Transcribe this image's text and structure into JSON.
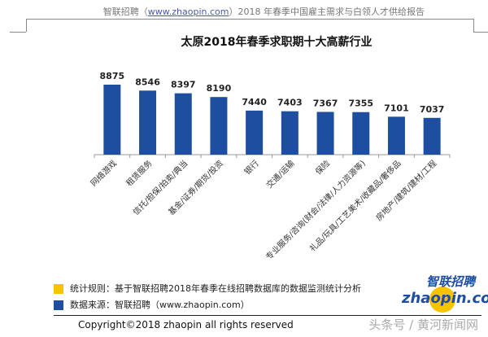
{
  "header": {
    "prefix": "智联招聘（",
    "link": "www.zhaopin.com",
    "suffix": "）2018 年春季中国雇主需求与白领人才供给报告"
  },
  "chart_data": {
    "type": "bar",
    "title": "太原2018年春季求职期十大高薪行业",
    "categories": [
      "网络游戏",
      "租赁服务",
      "信托/担保/拍卖/典当",
      "基金/证券/期货/投资",
      "银行",
      "交通/运输",
      "保险",
      "专业服务/咨询(财会/法律/人力资源等)",
      "礼品/玩具/工艺美术/收藏品/奢侈品",
      "房地产/建筑/建材/工程"
    ],
    "values": [
      8875,
      8546,
      8397,
      8190,
      7440,
      7403,
      7367,
      7355,
      7101,
      7037
    ],
    "ylim": [
      5000,
      9000
    ],
    "bar_color": "#1d4ea0"
  },
  "legend": [
    {
      "color": "#f8c400",
      "text": "统计规则：基于智联招聘2018年春季在线招聘数据库的数据监测统计分析"
    },
    {
      "color": "#1d4ea0",
      "text": "数据来源：智联招聘（www.zhaopin.com）"
    }
  ],
  "logo": {
    "cn": "智联招聘",
    "en": "zhaopin.com"
  },
  "copyright": "Copyright©2018 zhaopin all rights reserved",
  "watermark": "头条号 / 黄河新闻网"
}
